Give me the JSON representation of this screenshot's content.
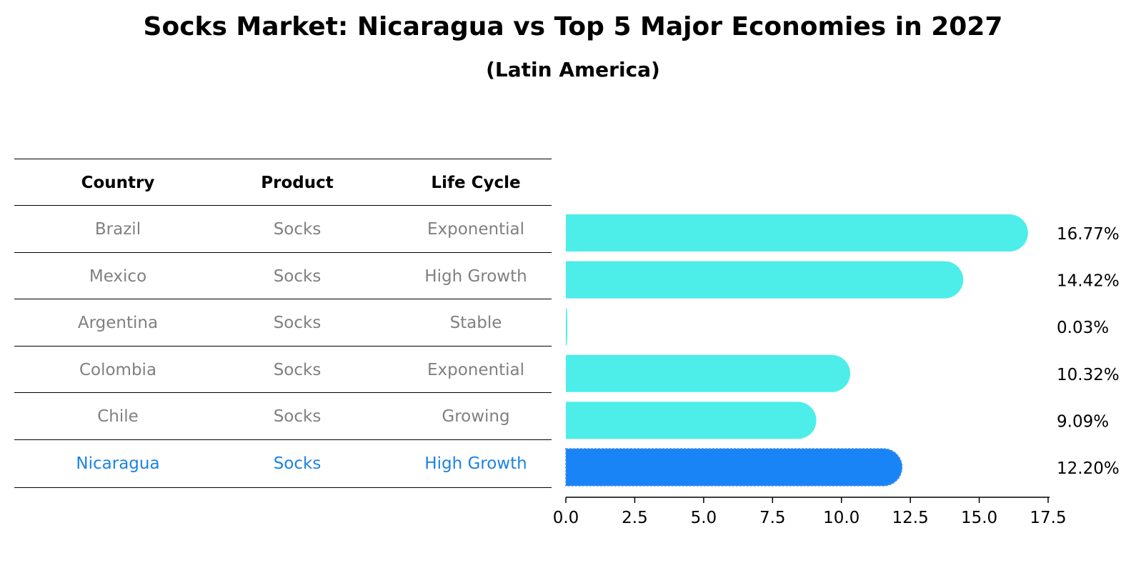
{
  "chart_data": {
    "type": "bar",
    "orientation": "horizontal",
    "title": "Socks Market: Nicaragua vs Top 5 Major Economies in 2027",
    "subtitle": "(Latin America)",
    "xlabel": "",
    "ylabel": "",
    "xlim": [
      0,
      17.5
    ],
    "xticks": [
      "0.0",
      "2.5",
      "5.0",
      "7.5",
      "10.0",
      "12.5",
      "15.0",
      "17.5"
    ],
    "categories": [
      "Brazil",
      "Mexico",
      "Argentina",
      "Colombia",
      "Chile",
      "Nicaragua"
    ],
    "values": [
      16.77,
      14.42,
      0.03,
      10.32,
      9.09,
      12.2
    ],
    "value_labels": [
      "16.77%",
      "14.42%",
      "0.03%",
      "10.32%",
      "9.09%",
      "12.20%"
    ],
    "highlight_index": 5,
    "colors": {
      "bar": "#4dedea",
      "highlight": "#1984f5",
      "highlight_text": "#1c83e1",
      "muted_text": "#808080"
    }
  },
  "table": {
    "headers": [
      "Country",
      "Product",
      "Life Cycle"
    ],
    "rows": [
      [
        "Brazil",
        "Socks",
        "Exponential"
      ],
      [
        "Mexico",
        "Socks",
        "High Growth"
      ],
      [
        "Argentina",
        "Socks",
        "Stable"
      ],
      [
        "Colombia",
        "Socks",
        "Exponential"
      ],
      [
        "Chile",
        "Socks",
        "Growing"
      ],
      [
        "Nicaragua",
        "Socks",
        "High Growth"
      ]
    ]
  }
}
